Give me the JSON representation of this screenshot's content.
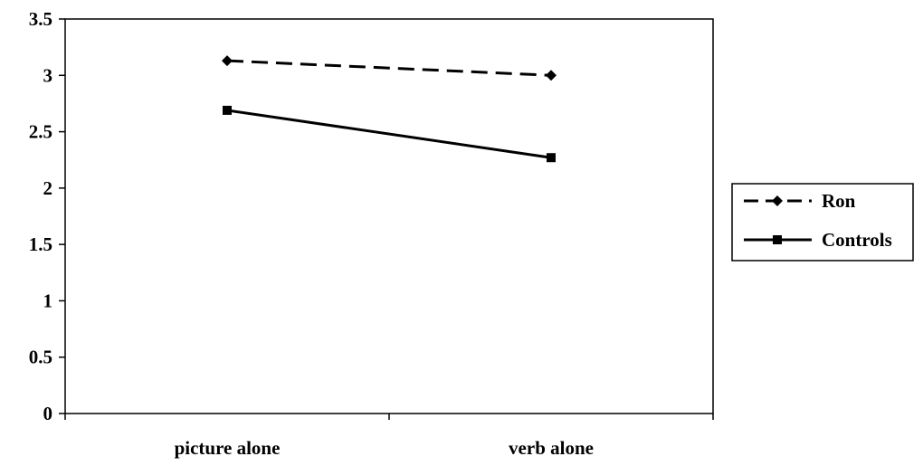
{
  "chart_data": {
    "type": "line",
    "title": "",
    "xlabel": "",
    "ylabel": "",
    "categories": [
      "picture alone",
      "verb alone"
    ],
    "ylim": [
      0,
      3.5
    ],
    "yticks": [
      "0",
      "0.5",
      "1",
      "1.5",
      "2",
      "2.5",
      "3",
      "3.5"
    ],
    "grid": false,
    "legend_position": "right",
    "series": [
      {
        "name": "Ron",
        "values": [
          3.13,
          3.0
        ],
        "line_style": "dashed",
        "marker": "diamond",
        "color": "#000000"
      },
      {
        "name": "Controls",
        "values": [
          2.69,
          2.27
        ],
        "line_style": "solid",
        "marker": "square",
        "color": "#000000"
      }
    ]
  }
}
